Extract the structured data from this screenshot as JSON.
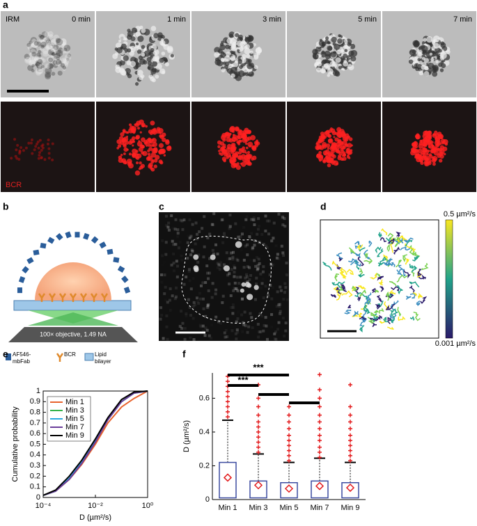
{
  "panels": {
    "a": {
      "label": "a",
      "irm_label": "IRM",
      "bcr_label": "BCR",
      "times": [
        "0 min",
        "1 min",
        "3 min",
        "5 min",
        "7 min"
      ]
    },
    "b": {
      "label": "b",
      "objective": "100× objective, 1.49 NA",
      "legend": [
        [
          "AF546-",
          "mbFab"
        ],
        [
          "BCR"
        ],
        [
          "Lipid",
          "bilayer"
        ]
      ]
    },
    "c": {
      "label": "c"
    },
    "d": {
      "label": "d",
      "colorbar_max": "0.5 µm²/s",
      "colorbar_min": "0.001 µm²/s"
    }
  },
  "chart_data": [
    {
      "type": "line",
      "label": "e",
      "x_label": "D (µm²/s)",
      "y_label": "Cumulative probability",
      "log_x": true,
      "x": [
        0.0001,
        0.0003,
        0.001,
        0.003,
        0.01,
        0.03,
        0.1,
        0.3,
        1
      ],
      "series": [
        {
          "name": "Min 1",
          "color": "#e8622c",
          "values": [
            0.02,
            0.06,
            0.17,
            0.31,
            0.5,
            0.7,
            0.85,
            0.93,
            1
          ]
        },
        {
          "name": "Min 3",
          "color": "#35b34a",
          "values": [
            0.02,
            0.06,
            0.18,
            0.33,
            0.53,
            0.74,
            0.9,
            0.98,
            1
          ]
        },
        {
          "name": "Min 5",
          "color": "#29a8e0",
          "values": [
            0.02,
            0.06,
            0.18,
            0.33,
            0.53,
            0.73,
            0.9,
            0.98,
            1
          ]
        },
        {
          "name": "Min 7",
          "color": "#6a3d9a",
          "values": [
            0.02,
            0.06,
            0.17,
            0.32,
            0.52,
            0.73,
            0.9,
            0.98,
            1
          ]
        },
        {
          "name": "Min 9",
          "color": "#000000",
          "values": [
            0.02,
            0.07,
            0.2,
            0.35,
            0.55,
            0.75,
            0.92,
            0.99,
            1
          ]
        }
      ],
      "xlim": [
        0.0001,
        1
      ],
      "xticks": [
        {
          "value": 0.0001,
          "label": "10⁻⁴"
        },
        {
          "value": 0.01,
          "label": "10⁻²"
        },
        {
          "value": 1,
          "label": "10⁰"
        }
      ],
      "ylim": [
        0,
        1
      ],
      "yticks": [
        0,
        0.1,
        0.2,
        0.3,
        0.4,
        0.5,
        0.6,
        0.7,
        0.8,
        0.9,
        1
      ],
      "legend": "upper left"
    },
    {
      "type": "box",
      "label": "f",
      "y_label": "D (µm²/s)",
      "categories": [
        "Min 1",
        "Min 3",
        "Min 5",
        "Min 7",
        "Min 9"
      ],
      "box_color": "#3b4ba0",
      "outlier_color": "#e31a1c",
      "boxes": [
        {
          "whisker_low": 0,
          "q1": 0.01,
          "q3": 0.22,
          "whisker_high": 0.47,
          "mean": 0.13,
          "outliers": [
            0.49,
            0.52,
            0.55,
            0.58,
            0.61,
            0.64,
            0.67,
            0.7,
            0.73
          ]
        },
        {
          "whisker_low": 0,
          "q1": 0.01,
          "q3": 0.11,
          "whisker_high": 0.27,
          "mean": 0.085,
          "outliers": [
            0.28,
            0.31,
            0.34,
            0.37,
            0.4,
            0.43,
            0.46,
            0.5,
            0.55,
            0.6,
            0.68
          ]
        },
        {
          "whisker_low": 0,
          "q1": 0.01,
          "q3": 0.1,
          "whisker_high": 0.22,
          "mean": 0.065,
          "outliers": [
            0.23,
            0.26,
            0.29,
            0.32,
            0.35,
            0.38,
            0.42,
            0.46,
            0.5,
            0.55
          ]
        },
        {
          "whisker_low": 0,
          "q1": 0.01,
          "q3": 0.11,
          "whisker_high": 0.245,
          "mean": 0.08,
          "outliers": [
            0.25,
            0.28,
            0.31,
            0.35,
            0.38,
            0.42,
            0.46,
            0.5,
            0.55,
            0.6,
            0.65,
            0.74
          ]
        },
        {
          "whisker_low": 0,
          "q1": 0.01,
          "q3": 0.1,
          "whisker_high": 0.22,
          "mean": 0.07,
          "outliers": [
            0.23,
            0.26,
            0.29,
            0.32,
            0.35,
            0.38,
            0.42,
            0.46,
            0.5,
            0.55,
            0.68
          ]
        }
      ],
      "ylim": [
        0,
        0.75
      ],
      "yticks": [
        0,
        0.2,
        0.4,
        0.6
      ],
      "significance": [
        "***",
        "***"
      ]
    }
  ]
}
